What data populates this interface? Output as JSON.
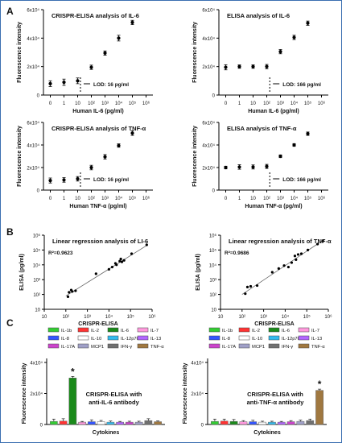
{
  "panel_letters": [
    "A",
    "B",
    "C"
  ],
  "chart_data": [
    {
      "type": "scatter",
      "panel": "A",
      "title": "CRISPR-ELISA analysis of IL-6",
      "xlabel": "Human IL-6 (pg/ml)",
      "ylabel": "Fluorescence intensity",
      "x_ticks": [
        "0",
        "1",
        "10",
        "10²",
        "10³",
        "10⁴",
        "10⁵",
        "10⁶"
      ],
      "y_ticks": [
        "0",
        "2x10⁴",
        "4x10⁴",
        "6x10⁴"
      ],
      "ylim": [
        0,
        60000
      ],
      "x": [
        "0",
        "1",
        "10",
        "10²",
        "10³",
        "10⁴",
        "10⁵"
      ],
      "values": [
        8000,
        9000,
        10000,
        19500,
        29500,
        40000,
        51000
      ],
      "errors": [
        2000,
        2200,
        2000,
        1500,
        1500,
        2000,
        1500
      ],
      "lod_label": "LOD: 16 pg/ml",
      "lod_x": "16"
    },
    {
      "type": "scatter",
      "panel": "A",
      "title": "ELISA analysis of IL-6",
      "xlabel": "Human IL-6 (pg/ml)",
      "ylabel": "Fluorescence intensity",
      "x_ticks": [
        "0",
        "1",
        "10",
        "10²",
        "10³",
        "10⁴",
        "10⁵",
        "10⁶"
      ],
      "y_ticks": [
        "0",
        "2x10⁴",
        "4x10⁴",
        "6x10⁴"
      ],
      "ylim": [
        0,
        60000
      ],
      "x": [
        "0",
        "1",
        "10",
        "10²",
        "10³",
        "10⁴",
        "10⁵"
      ],
      "values": [
        19500,
        20000,
        20000,
        20000,
        30500,
        40500,
        50500
      ],
      "errors": [
        1800,
        1200,
        1200,
        1500,
        1500,
        1500,
        1500
      ],
      "lod_label": "LOD: 166 pg/ml",
      "lod_x": "166"
    },
    {
      "type": "scatter",
      "panel": "A",
      "title": "CRISPR-ELISA analysis of TNF-α",
      "xlabel": "Human TNF-α (pg/ml)",
      "ylabel": "Fluorescence intensity",
      "x_ticks": [
        "0",
        "1",
        "10",
        "10²",
        "10³",
        "10⁴",
        "10⁵",
        "10⁶"
      ],
      "y_ticks": [
        "0",
        "2x10⁴",
        "4x10⁴",
        "6x10⁴"
      ],
      "ylim": [
        0,
        60000
      ],
      "x": [
        "0",
        "1",
        "10",
        "10²",
        "10³",
        "10⁴",
        "10⁵"
      ],
      "values": [
        8500,
        9000,
        10000,
        20000,
        29500,
        39500,
        50500
      ],
      "errors": [
        2200,
        2000,
        2000,
        2000,
        2000,
        1500,
        2000
      ],
      "lod_label": "LOD: 16 pg/ml",
      "lod_x": "16"
    },
    {
      "type": "scatter",
      "panel": "A",
      "title": "ELISA analysis of TNF-α",
      "xlabel": "Human TNF-α (pg/ml)",
      "ylabel": "Fluorescence intensity",
      "x_ticks": [
        "0",
        "1",
        "10",
        "10²",
        "10³",
        "10⁴",
        "10⁵",
        "10⁶"
      ],
      "y_ticks": [
        "0",
        "2x10⁴",
        "4x10⁴",
        "6x10⁴"
      ],
      "ylim": [
        0,
        60000
      ],
      "x": [
        "0",
        "1",
        "10",
        "10²",
        "10³",
        "10⁴",
        "10⁵"
      ],
      "values": [
        20000,
        20500,
        20500,
        21000,
        30000,
        40000,
        50000
      ],
      "errors": [
        1200,
        2000,
        1800,
        1800,
        1200,
        1200,
        1500
      ],
      "lod_label": "LOD: 166 pg/ml",
      "lod_x": "166"
    },
    {
      "type": "scatter",
      "panel": "B",
      "title": "Linear regression analysis of LI-6",
      "annotation": "R²=0.9623",
      "xlabel": "CRISPR-ELISA",
      "ylabel": "ELISA (pg/ml)",
      "log_scale": true,
      "x_ticks": [
        "10",
        "10²",
        "10³",
        "10⁴",
        "10⁵",
        "10⁶"
      ],
      "y_ticks": [
        "10",
        "10²",
        "10³",
        "10⁴",
        "10⁵",
        "10⁶"
      ],
      "xlim_log10": [
        1,
        6
      ],
      "ylim_log10": [
        1,
        6
      ],
      "points_log10": [
        [
          2.1,
          1.85
        ],
        [
          2.15,
          2.15
        ],
        [
          2.25,
          2.3
        ],
        [
          2.3,
          2.2
        ],
        [
          2.45,
          2.25
        ],
        [
          3.4,
          3.4
        ],
        [
          4.0,
          3.7
        ],
        [
          4.15,
          3.85
        ],
        [
          4.3,
          4.1
        ],
        [
          4.35,
          4.0
        ],
        [
          4.5,
          4.25
        ],
        [
          4.55,
          4.4
        ],
        [
          4.6,
          4.2
        ],
        [
          4.7,
          4.3
        ],
        [
          5.05,
          4.75
        ],
        [
          5.75,
          5.35
        ]
      ],
      "fit_log10": [
        [
          2.0,
          1.9
        ],
        [
          5.8,
          5.35
        ]
      ]
    },
    {
      "type": "scatter",
      "panel": "B",
      "title": "Linear regression analysis of TNF-α",
      "annotation": "R²=0.9686",
      "xlabel": "CRISPR-ELISA",
      "ylabel": "ELISA (pg/ml)",
      "log_scale": true,
      "x_ticks": [
        "10",
        "10²",
        "10³",
        "10⁴",
        "10⁵",
        "10⁶"
      ],
      "y_ticks": [
        "10",
        "10²",
        "10³",
        "10⁴",
        "10⁵",
        "10⁶"
      ],
      "xlim_log10": [
        1,
        6
      ],
      "ylim_log10": [
        1,
        6
      ],
      "points_log10": [
        [
          2.15,
          2.05
        ],
        [
          2.25,
          2.5
        ],
        [
          2.4,
          2.55
        ],
        [
          2.7,
          2.6
        ],
        [
          3.4,
          3.5
        ],
        [
          3.7,
          3.75
        ],
        [
          3.95,
          3.95
        ],
        [
          4.15,
          3.85
        ],
        [
          4.3,
          4.15
        ],
        [
          4.45,
          4.6
        ],
        [
          4.5,
          4.35
        ],
        [
          4.6,
          4.7
        ],
        [
          4.75,
          4.75
        ],
        [
          5.05,
          5.0
        ],
        [
          5.5,
          5.4
        ],
        [
          5.75,
          5.6
        ]
      ],
      "fit_log10": [
        [
          2.0,
          2.0
        ],
        [
          5.8,
          5.7
        ]
      ]
    },
    {
      "type": "bar",
      "panel": "C",
      "xlabel": "Cytokines",
      "ylabel": "Fluorescence intensity",
      "y_ticks": [
        "0",
        "2x10⁴",
        "4x10⁴"
      ],
      "ylim": [
        0,
        40000
      ],
      "annotation": "CRISPR-ELISA with\nanti-IL-6 antibody",
      "star": "*",
      "categories": [
        "IL-1b",
        "IL-2",
        "IL-6",
        "IL-7",
        "IL-8",
        "IL-10",
        "IL-12p70",
        "IL-13",
        "IL-17A",
        "MCP1",
        "IFN-γ",
        "TNF-α"
      ],
      "values": [
        2000,
        2200,
        30000,
        1500,
        1800,
        1800,
        1500,
        1500,
        1500,
        1500,
        2500,
        1800
      ],
      "errors": [
        1500,
        1500,
        1000,
        500,
        1200,
        800,
        700,
        500,
        600,
        600,
        1200,
        500
      ],
      "colors": [
        "#33cc33",
        "#ff3333",
        "#1a8a1a",
        "#ff99dd",
        "#3355ff",
        "#ffffff",
        "#33bbee",
        "#b266ff",
        "#cc44cc",
        "#a0a0c8",
        "#707070",
        "#a07840"
      ]
    },
    {
      "type": "bar",
      "panel": "C",
      "xlabel": "Cytokines",
      "ylabel": "Fluorescence intensity",
      "y_ticks": [
        "0",
        "2x10⁴",
        "4x10⁴"
      ],
      "ylim": [
        0,
        40000
      ],
      "annotation": "CRISPR-ELISA with\nanti-TNF-α antibody",
      "star": "*",
      "categories": [
        "IL-1b",
        "IL-2",
        "IL-6",
        "IL-7",
        "IL-8",
        "IL-10",
        "IL-12p70",
        "IL-13",
        "IL-17A",
        "MCP1",
        "IFN-γ",
        "TNF-α"
      ],
      "values": [
        2000,
        2200,
        2000,
        1800,
        1800,
        1500,
        1500,
        1500,
        1800,
        2000,
        2500,
        22000
      ],
      "errors": [
        1500,
        1300,
        1200,
        700,
        900,
        600,
        600,
        500,
        700,
        800,
        1000,
        800
      ],
      "colors": [
        "#33cc33",
        "#ff3333",
        "#1a8a1a",
        "#ff99dd",
        "#3355ff",
        "#ffffff",
        "#33bbee",
        "#b266ff",
        "#cc44cc",
        "#a0a0c8",
        "#707070",
        "#a07840"
      ]
    }
  ]
}
